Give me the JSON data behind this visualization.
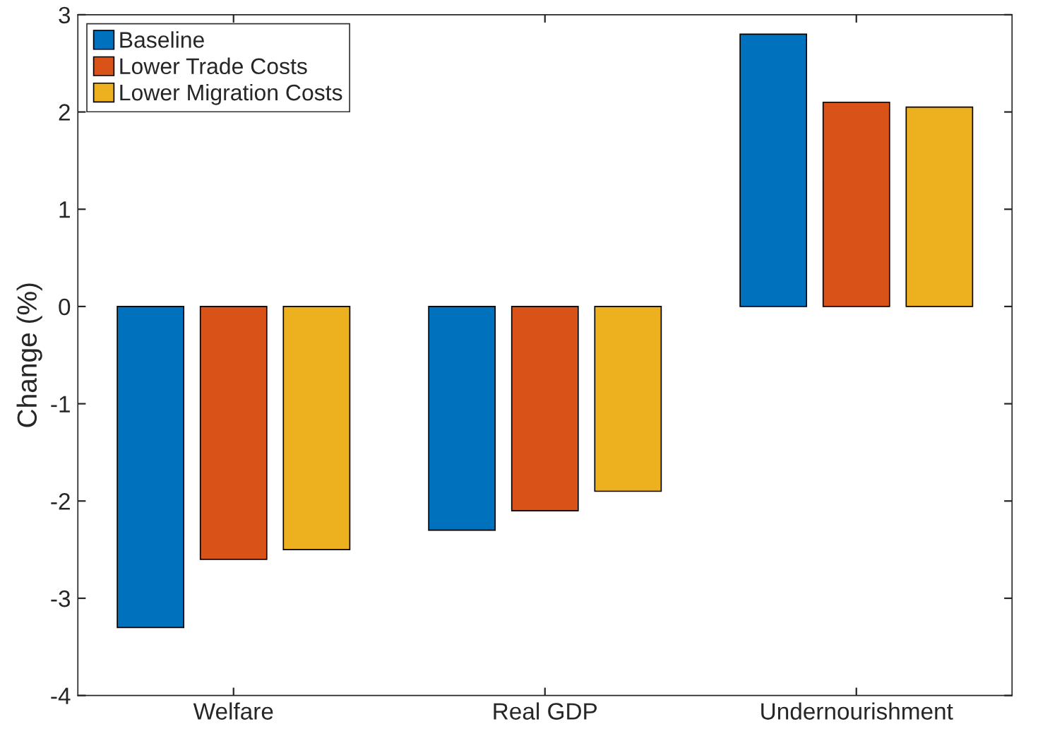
{
  "chart_data": {
    "type": "bar",
    "ylabel": "Change (%)",
    "categories": [
      "Welfare",
      "Real GDP",
      "Undernourishment"
    ],
    "series": [
      {
        "name": "Baseline",
        "color": "#0072bd",
        "values": [
          -3.3,
          -2.3,
          2.8
        ]
      },
      {
        "name": "Lower Trade Costs",
        "color": "#d95319",
        "values": [
          -2.6,
          -2.1,
          2.1
        ]
      },
      {
        "name": "Lower Migration Costs",
        "color": "#edb120",
        "values": [
          -2.5,
          -1.9,
          2.05
        ]
      }
    ],
    "ylim": [
      -4,
      3
    ],
    "yticks": [
      -4,
      -3,
      -2,
      -1,
      0,
      1,
      2,
      3
    ],
    "grid": false,
    "legend": "top left"
  }
}
